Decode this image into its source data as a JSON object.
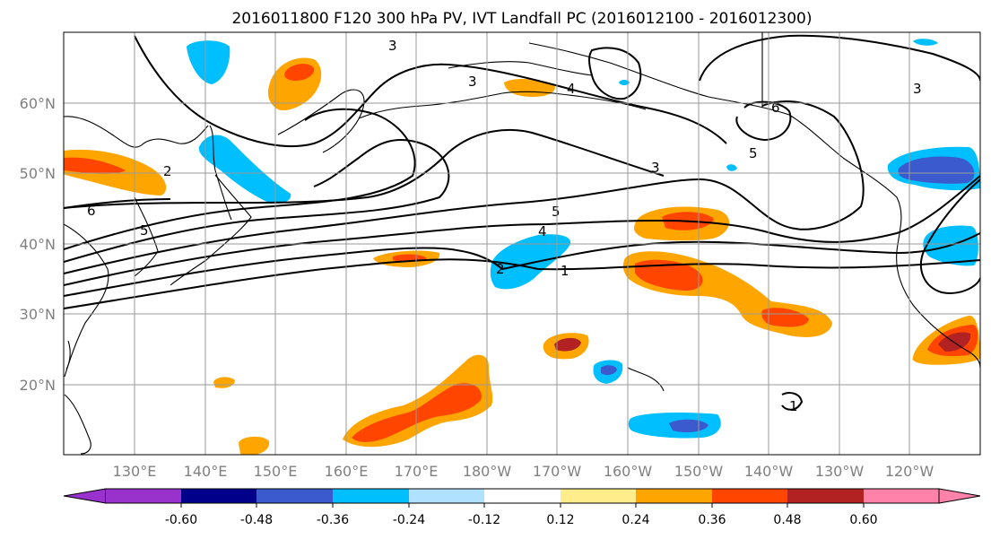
{
  "title": "2016011800 F120 300 hPa PV, IVT Landfall PC (2016012100 - 2016012300)",
  "map": {
    "lon_labels": [
      "130°E",
      "140°E",
      "150°E",
      "160°E",
      "170°E",
      "180°W",
      "170°W",
      "160°W",
      "150°W",
      "140°W",
      "130°W",
      "120°W"
    ],
    "lat_labels": [
      "20°N",
      "30°N",
      "40°N",
      "50°N",
      "60°N"
    ],
    "grid": true,
    "coastline_color": "#000000"
  },
  "pv_contours": {
    "levels": [
      "1",
      "2",
      "3",
      "4",
      "5",
      "6"
    ],
    "color": "#000000"
  },
  "shading": {
    "negative_fill": "#00bfff",
    "positive_fill": "#ffa500",
    "strong_negative_fill": "#3a5acd",
    "strong_positive_fill": "#ff4500",
    "extreme_positive_fill": "#b22222"
  },
  "colorbar": {
    "ticks": [
      "-0.60",
      "-0.48",
      "-0.36",
      "-0.24",
      "-0.12",
      "0.12",
      "0.24",
      "0.36",
      "0.48",
      "0.60"
    ],
    "colors": [
      "#9932cc",
      "#00008b",
      "#3a5acd",
      "#00bfff",
      "#b0e2ff",
      "#ffffff",
      "#ffec8b",
      "#ffa500",
      "#ff4500",
      "#b22222",
      "#ff82ab"
    ]
  }
}
